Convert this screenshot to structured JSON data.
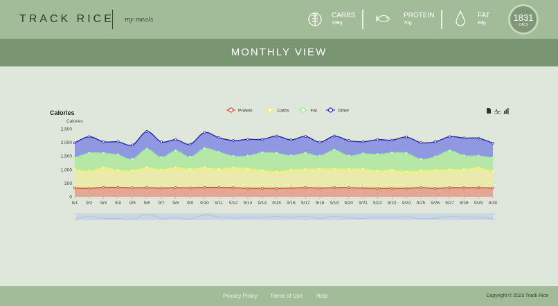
{
  "header": {
    "logo": "TRACK RICE",
    "tagline": "my meals",
    "macros": [
      {
        "label": "CARBS",
        "value": "198g",
        "icon": "wheat-icon"
      },
      {
        "label": "PROTEIN",
        "value": "70g",
        "icon": "fish-icon"
      },
      {
        "label": "FAT",
        "value": "89g",
        "icon": "drop-icon"
      }
    ],
    "calories": {
      "value": "1831",
      "unit": "CALS",
      "progress": 0.08
    }
  },
  "page_title": "MONTHLY VIEW",
  "chart_data": {
    "type": "area",
    "stacked": true,
    "title": "Calories",
    "ylabel": "Calories",
    "ylim": [
      0,
      2500
    ],
    "yticks": [
      "0",
      "500",
      "1,000",
      "1,500",
      "2,000",
      "2,500"
    ],
    "legend_position": "top-center",
    "categories": [
      "9/1",
      "9/2",
      "9/3",
      "9/4",
      "9/5",
      "9/6",
      "9/7",
      "9/8",
      "9/9",
      "9/10",
      "9/11",
      "9/12",
      "9/13",
      "9/14",
      "9/15",
      "9/16",
      "9/17",
      "9/18",
      "9/19",
      "9/20",
      "9/21",
      "9/22",
      "9/23",
      "9/24",
      "9/25",
      "9/26",
      "9/27",
      "9/28",
      "9/29",
      "9/30"
    ],
    "series": [
      {
        "name": "Protein",
        "line": "#e0402a",
        "fill": "#e2a795",
        "values": [
          320,
          305,
          340,
          340,
          325,
          330,
          315,
          330,
          325,
          340,
          340,
          330,
          305,
          305,
          305,
          315,
          330,
          315,
          330,
          330,
          315,
          305,
          305,
          305,
          330,
          305,
          330,
          330,
          330,
          315
        ]
      },
      {
        "name": "Carbs",
        "line": "#f2f24a",
        "fill": "#e9ebaa",
        "values": [
          680,
          630,
          730,
          630,
          635,
          740,
          670,
          740,
          685,
          730,
          670,
          740,
          725,
          665,
          615,
          670,
          680,
          715,
          690,
          690,
          705,
          645,
          675,
          615,
          630,
          665,
          670,
          670,
          730,
          605
        ]
      },
      {
        "name": "Fat",
        "line": "#8ff07a",
        "fill": "#b7e7a6",
        "values": [
          430,
          670,
          530,
          570,
          420,
          680,
          460,
          620,
          450,
          700,
          630,
          420,
          470,
          650,
          680,
          525,
          590,
          470,
          695,
          480,
          560,
          605,
          635,
          680,
          420,
          500,
          690,
          510,
          440,
          510
        ]
      },
      {
        "name": "Other",
        "line": "#2222cc",
        "fill": "#9098e0",
        "values": [
          550,
          605,
          420,
          480,
          520,
          650,
          570,
          410,
          470,
          590,
          530,
          575,
          610,
          490,
          630,
          580,
          620,
          505,
          515,
          565,
          440,
          545,
          465,
          595,
          610,
          550,
          520,
          650,
          650,
          540
        ]
      }
    ],
    "toolbar": [
      "document-icon",
      "line-chart-icon",
      "bar-chart-icon"
    ]
  },
  "footer": {
    "links": [
      "Privacy Policy",
      "Terms of Use",
      "Help"
    ],
    "copyright": "Copyright © 2023 Track Rice"
  }
}
